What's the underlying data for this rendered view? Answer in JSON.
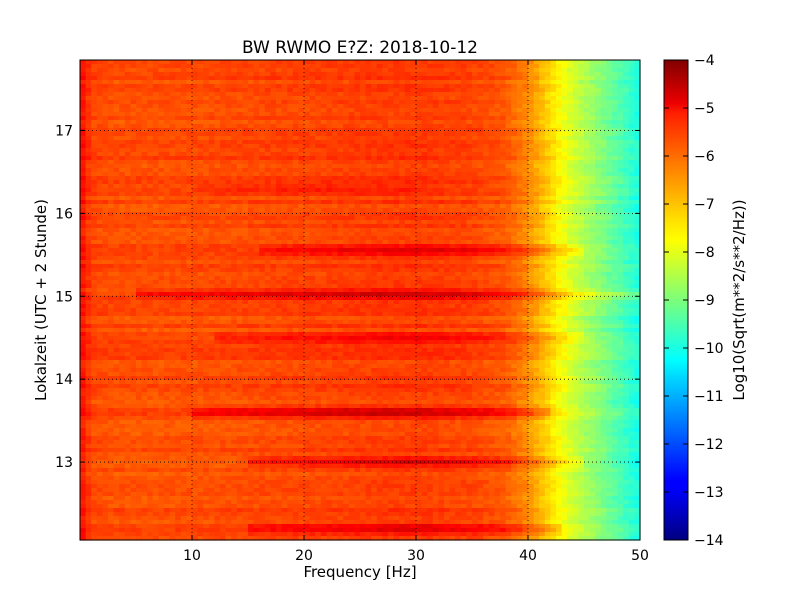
{
  "chart_data": {
    "type": "heatmap",
    "title": "BW RWMO E?Z: 2018-10-12",
    "xlabel": "Frequency [Hz]",
    "ylabel": "Lokalzeit (UTC + 2 Stunde)",
    "colorbar_label": "Log10(Sqrt(m**2/s**2/Hz))",
    "colormap": "jet",
    "xlim": [
      0,
      50
    ],
    "ylim": [
      17.85,
      12.06
    ],
    "y_inverted": true,
    "x_ticks": [
      10,
      20,
      30,
      40,
      50
    ],
    "x_tick_labels": [
      "10",
      "20",
      "30",
      "40",
      "50"
    ],
    "y_ticks": [
      13,
      14,
      15,
      16,
      17
    ],
    "y_tick_labels": [
      "13",
      "14",
      "15",
      "16",
      "17"
    ],
    "clim": [
      -14,
      -4
    ],
    "colorbar_ticks": [
      -4,
      -5,
      -6,
      -7,
      -8,
      -9,
      -10,
      -11,
      -12,
      -13,
      -14
    ],
    "colorbar_tick_labels": [
      "−4",
      "−5",
      "−6",
      "−7",
      "−8",
      "−9",
      "−10",
      "−11",
      "−12",
      "−13",
      "−14"
    ],
    "grid": true,
    "grid_style": "dotted",
    "frequency_profile": {
      "frequency_hz": [
        0,
        1,
        3,
        10,
        20,
        30,
        35,
        38,
        40,
        42,
        44,
        46,
        48,
        50
      ],
      "level": [
        -5.3,
        -5.9,
        -6.0,
        -6.0,
        -5.9,
        -5.8,
        -5.9,
        -6.1,
        -6.6,
        -7.4,
        -8.2,
        -8.8,
        -9.4,
        -10.0
      ]
    },
    "energetic_bands": [
      {
        "time_h": 12.2,
        "level_offset": 0.9,
        "freq_range_hz": [
          15,
          43
        ]
      },
      {
        "time_h": 13.0,
        "level_offset": 1.1,
        "freq_range_hz": [
          15,
          45
        ]
      },
      {
        "time_h": 13.6,
        "level_offset": 1.2,
        "freq_range_hz": [
          10,
          42
        ]
      },
      {
        "time_h": 14.5,
        "level_offset": 0.7,
        "freq_range_hz": [
          12,
          45
        ]
      },
      {
        "time_h": 15.03,
        "level_offset": 1.1,
        "freq_range_hz": [
          5,
          50
        ]
      },
      {
        "time_h": 15.55,
        "level_offset": 0.9,
        "freq_range_hz": [
          16,
          45
        ]
      },
      {
        "time_h": 16.3,
        "level_offset": 0.4,
        "freq_range_hz": [
          10,
          30
        ]
      }
    ]
  }
}
